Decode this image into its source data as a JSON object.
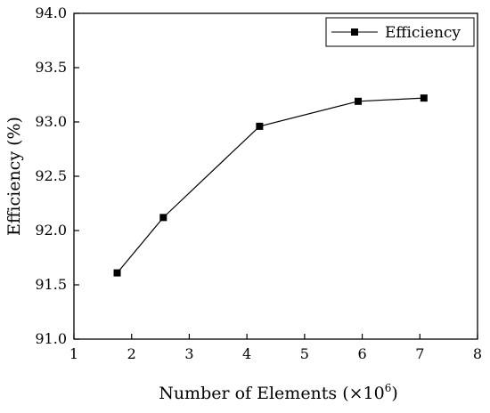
{
  "chart_data": {
    "type": "line",
    "xlabel": "Number of Elements (×10",
    "xlabel_superscript": "6",
    "xlabel_suffix": ")",
    "ylabel": "Efficiency (%)",
    "xlim": [
      1,
      8
    ],
    "ylim": [
      91.0,
      94.0
    ],
    "xticks": [
      1,
      2,
      3,
      4,
      5,
      6,
      7,
      8
    ],
    "yticks": [
      "91.0",
      "91.5",
      "92.0",
      "92.5",
      "93.0",
      "93.5",
      "94.0"
    ],
    "grid": false,
    "legend_position": "top-right",
    "series": [
      {
        "name": "Efficiency",
        "color": "#000000",
        "marker": "square",
        "points": [
          {
            "x": 1.75,
            "y": 91.61
          },
          {
            "x": 2.55,
            "y": 92.12
          },
          {
            "x": 4.22,
            "y": 92.96
          },
          {
            "x": 5.93,
            "y": 93.19
          },
          {
            "x": 7.07,
            "y": 93.22
          }
        ]
      }
    ]
  }
}
